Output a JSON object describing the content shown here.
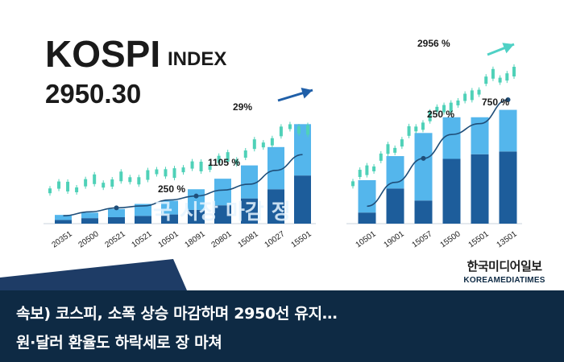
{
  "brand_colors": {
    "navy": "#0e2a44",
    "bar_light": "#54b6ec",
    "bar_dark": "#1d5d9b",
    "candle": "#4fd1b8",
    "trend": "#1f4e79"
  },
  "title": {
    "name": "KOSPI",
    "subtitle": "INDEX",
    "value": "2950.30"
  },
  "overlay_text": "국 시장 마감 정",
  "headline": {
    "line1": "속보) 코스피, 소폭 상승 마감하며 2950선 유지…",
    "line2": "원·달러 환율도 하락세로 장 마쳐"
  },
  "brand": {
    "korean": "한국미디어일보",
    "english": "KOREAMEDIATIMES"
  },
  "chart_data": [
    {
      "type": "bar",
      "categories": [
        "20351",
        "20500",
        "20521",
        "10521",
        "10501",
        "18091",
        "20801",
        "15081",
        "10027",
        "15501"
      ],
      "series": [
        {
          "values": [
            8,
            12,
            14,
            17,
            20,
            30,
            40,
            55,
            75,
            105
          ]
        },
        {
          "values": [
            11,
            12,
            18,
            26,
            30,
            45,
            58,
            72,
            92,
            112
          ]
        }
      ],
      "trend_line": [
        20,
        30,
        40,
        45,
        60,
        70,
        85,
        100,
        135,
        175
      ],
      "annotations": [
        "250 %",
        "1105 %",
        "29%"
      ],
      "arrow_color": "#1f5fa8"
    },
    {
      "type": "bar",
      "categories": [
        "10501",
        "19001",
        "15057",
        "15500",
        "15501",
        "13501"
      ],
      "series": [
        {
          "values": [
            12,
            38,
            25,
            70,
            75,
            78
          ]
        },
        {
          "values": [
            35,
            35,
            73,
            45,
            40,
            45
          ]
        }
      ],
      "trend_line": [
        40,
        95,
        150,
        205,
        230,
        285
      ],
      "annotations": [
        "250 %",
        "750 %",
        "2956 %"
      ],
      "arrow_color": "#4fd1c5"
    }
  ]
}
